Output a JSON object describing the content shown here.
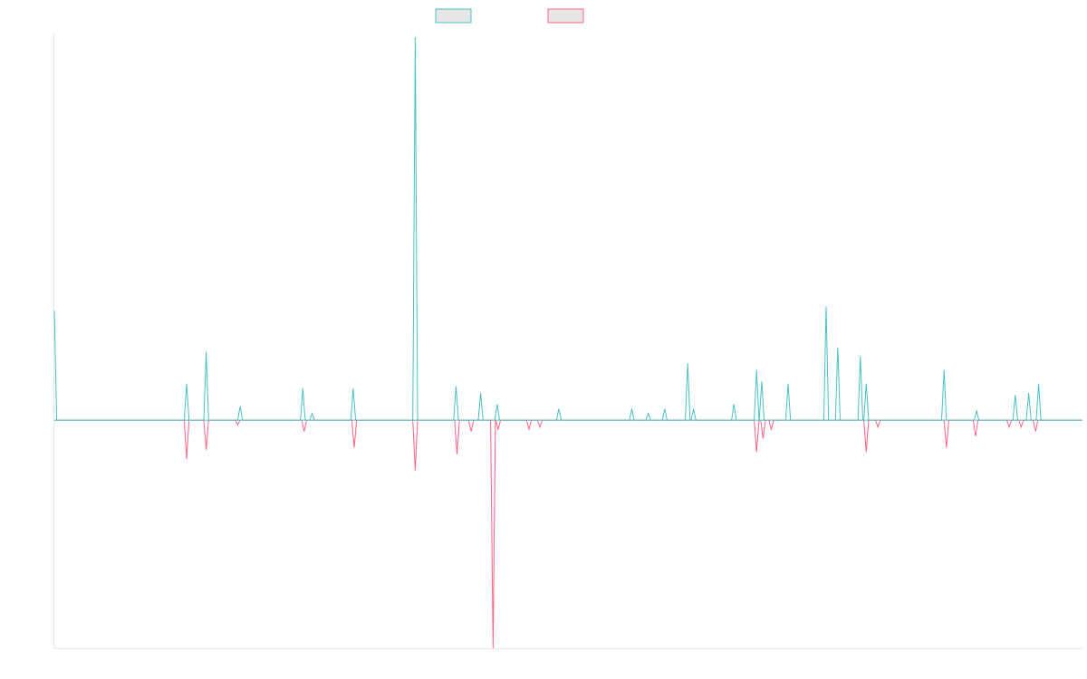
{
  "chart_data": {
    "type": "line",
    "title": "",
    "xlabel": "",
    "ylabel": "",
    "grid": false,
    "legend": "top-center",
    "x": [
      0,
      4,
      8,
      12,
      16,
      20,
      24,
      28,
      32,
      36,
      40,
      44,
      48,
      52,
      56,
      60,
      64,
      68,
      72,
      76,
      80,
      84,
      88,
      92,
      96,
      100,
      104,
      108,
      112,
      116,
      120,
      124,
      128,
      132,
      136,
      140,
      144,
      148,
      152,
      156,
      160,
      164,
      168,
      172,
      176,
      180,
      184,
      188,
      192,
      196,
      200,
      204,
      208,
      212,
      216,
      220,
      224,
      228,
      232,
      236,
      240,
      244,
      248,
      252,
      256,
      260,
      264,
      268,
      272,
      276,
      280,
      284,
      288,
      292,
      296,
      300
    ],
    "ylim": [
      -1,
      1.7
    ],
    "series": [
      {
        "name": "",
        "color": "#4bc0c0",
        "fill": "#e6e6e6",
        "values": [
          0.48,
          0,
          0,
          0,
          0,
          0,
          0,
          0,
          0,
          0,
          0.17,
          0,
          0.3,
          0,
          0.05,
          0,
          0,
          0,
          0,
          0,
          0.13,
          0.02,
          0,
          0,
          0.14,
          0,
          0,
          0,
          0,
          0,
          0,
          0,
          0,
          0,
          0,
          0,
          0,
          0,
          0,
          0,
          0,
          0,
          0,
          0,
          0,
          0,
          0,
          0,
          0,
          0,
          0,
          0,
          0,
          0,
          0,
          0,
          0,
          0,
          0,
          0,
          0,
          0,
          0,
          0,
          0,
          0,
          0,
          0,
          0,
          0,
          0,
          0,
          0,
          0,
          0,
          0
        ],
        "peaks": [
          {
            "x": 0,
            "y": 0.48
          },
          {
            "x": 38.6,
            "y": 0.16
          },
          {
            "x": 44.3,
            "y": 0.3
          },
          {
            "x": 54.2,
            "y": 0.06
          },
          {
            "x": 72.5,
            "y": 0.14
          },
          {
            "x": 75.2,
            "y": 0.03
          },
          {
            "x": 87.2,
            "y": 0.14
          },
          {
            "x": 105.3,
            "y": 1.68
          },
          {
            "x": 117.2,
            "y": 0.15
          },
          {
            "x": 124.4,
            "y": 0.12
          },
          {
            "x": 129.2,
            "y": 0.07
          },
          {
            "x": 147.2,
            "y": 0.05
          },
          {
            "x": 168.5,
            "y": 0.05
          },
          {
            "x": 173.3,
            "y": 0.03
          },
          {
            "x": 178.1,
            "y": 0.05
          },
          {
            "x": 184.8,
            "y": 0.25
          },
          {
            "x": 186.5,
            "y": 0.05
          },
          {
            "x": 198.3,
            "y": 0.07
          },
          {
            "x": 204.9,
            "y": 0.22
          },
          {
            "x": 206.4,
            "y": 0.17
          },
          {
            "x": 214.1,
            "y": 0.16
          },
          {
            "x": 225.2,
            "y": 0.5
          },
          {
            "x": 228.6,
            "y": 0.32
          },
          {
            "x": 235.2,
            "y": 0.28
          },
          {
            "x": 236.9,
            "y": 0.16
          },
          {
            "x": 259.6,
            "y": 0.22
          },
          {
            "x": 269.1,
            "y": 0.04
          },
          {
            "x": 280.4,
            "y": 0.11
          },
          {
            "x": 284.3,
            "y": 0.12
          },
          {
            "x": 287.2,
            "y": 0.16
          }
        ]
      },
      {
        "name": "",
        "color": "#ff6384",
        "fill": "#e6e6e6",
        "values": [
          0,
          0,
          0,
          0,
          0,
          0,
          0,
          0,
          0,
          0,
          -0.17,
          0,
          -0.13,
          0,
          0,
          0,
          0,
          0,
          0,
          0,
          -0.05,
          0,
          0,
          0,
          -0.12,
          0,
          0,
          0,
          0,
          0,
          0,
          0,
          0,
          0,
          0,
          0,
          0,
          0,
          0,
          0,
          0,
          0,
          0,
          0,
          0,
          0,
          0,
          0,
          0,
          0,
          0,
          0,
          0,
          0,
          0,
          0,
          0,
          0,
          0,
          0,
          0,
          0,
          0,
          0,
          0,
          0,
          0,
          0,
          0,
          0,
          0,
          0,
          0,
          0,
          0,
          0
        ],
        "peaks": [
          {
            "x": 38.6,
            "y": -0.17
          },
          {
            "x": 44.3,
            "y": -0.13
          },
          {
            "x": 53.5,
            "y": -0.02
          },
          {
            "x": 72.9,
            "y": -0.05
          },
          {
            "x": 87.5,
            "y": -0.12
          },
          {
            "x": 105.3,
            "y": -0.22
          },
          {
            "x": 117.5,
            "y": -0.15
          },
          {
            "x": 121.6,
            "y": -0.05
          },
          {
            "x": 128.0,
            "y": -1.0
          },
          {
            "x": 129.5,
            "y": -0.04
          },
          {
            "x": 138.5,
            "y": -0.04
          },
          {
            "x": 141.7,
            "y": -0.03
          },
          {
            "x": 204.9,
            "y": -0.14
          },
          {
            "x": 206.8,
            "y": -0.08
          },
          {
            "x": 209.2,
            "y": -0.04
          },
          {
            "x": 236.9,
            "y": -0.14
          },
          {
            "x": 240.3,
            "y": -0.03
          },
          {
            "x": 260.3,
            "y": -0.12
          },
          {
            "x": 268.8,
            "y": -0.07
          },
          {
            "x": 278.6,
            "y": -0.03
          },
          {
            "x": 282.1,
            "y": -0.03
          },
          {
            "x": 286.3,
            "y": -0.05
          }
        ]
      }
    ]
  }
}
